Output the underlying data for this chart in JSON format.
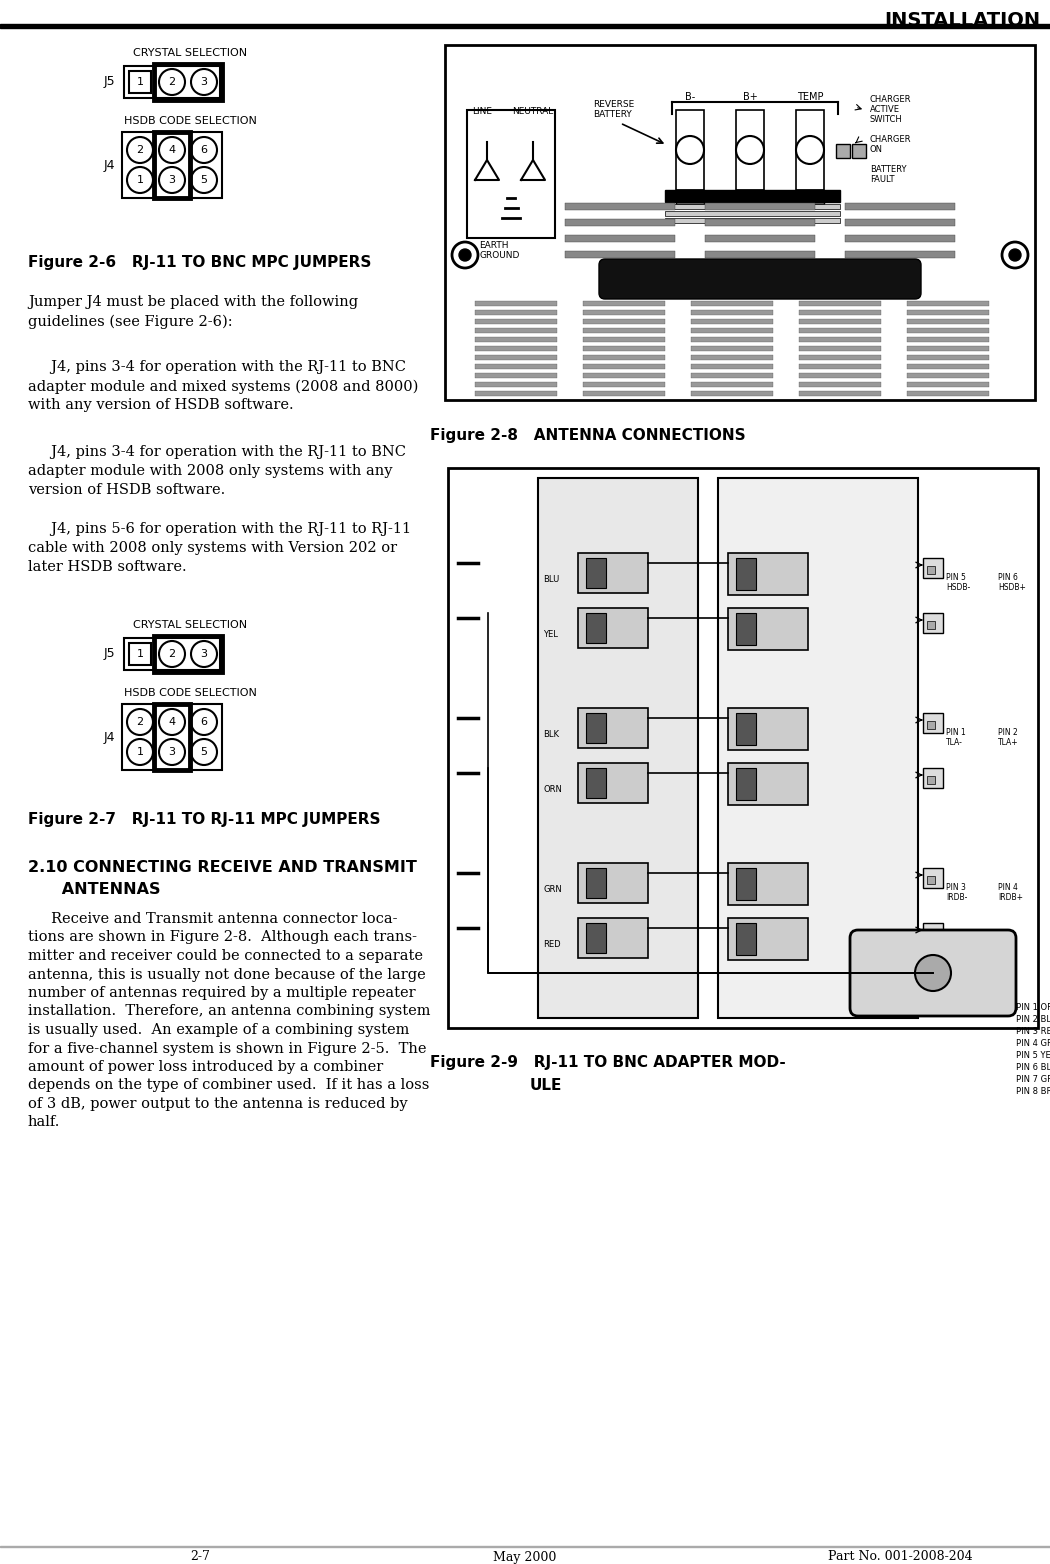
{
  "page_title": "INSTALLATION",
  "page_number": "2-7",
  "date": "May 2000",
  "part_no": "Part No. 001-2008-204",
  "fig26_title": "Figure 2-6   RJ-11 TO BNC MPC JUMPERS",
  "fig27_title": "Figure 2-7   RJ-11 TO RJ-11 MPC JUMPERS",
  "fig28_title": "Figure 2-8   ANTENNA CONNECTIONS",
  "fig29_title_line1": "Figure 2-9   RJ-11 TO BNC ADAPTER MOD-",
  "fig29_title_line2": "ULE",
  "section_title_line1": "2.10 CONNECTING RECEIVE AND TRANSMIT",
  "section_title_line2": "      ANTENNAS",
  "para1": "Jumper J4 must be placed with the following\nguidelines (see Figure 2-6):",
  "para2": "     J4, pins 3-4 for operation with the RJ-11 to BNC\nadapter module and mixed systems (2008 and 8000)\nwith any version of HSDB software.",
  "para3": "     J4, pins 3-4 for operation with the RJ-11 to BNC\nadapter module with 2008 only systems with any\nversion of HSDB software.",
  "para4": "     J4, pins 5-6 for operation with the RJ-11 to RJ-11\ncable with 2008 only systems with Version 202 or\nlater HSDB software.",
  "para5_line1": "     Receive and Transmit antenna connector loca-",
  "para5_line2": "tions are shown in Figure 2-8.  Although each trans-",
  "para5_line3": "mitter and receiver could be connected to a separate",
  "para5_line4": "antenna, this is usually not done because of the large",
  "para5_line5": "number of antennas required by a multiple repeater",
  "para5_line6": "installation.  Therefore, an antenna combining system",
  "para5_line7": "is usually used.  An example of a combining system",
  "para5_line8": "for a five-channel system is shown in Figure 2-5.  The",
  "para5_line9": "amount of power loss introduced by a combiner",
  "para5_line10": "depends on the type of combiner used.  If it has a loss",
  "para5_line11": "of 3 dB, power output to the antenna is reduced by",
  "para5_line12": "half.",
  "bg_color": "#ffffff",
  "text_color": "#000000"
}
